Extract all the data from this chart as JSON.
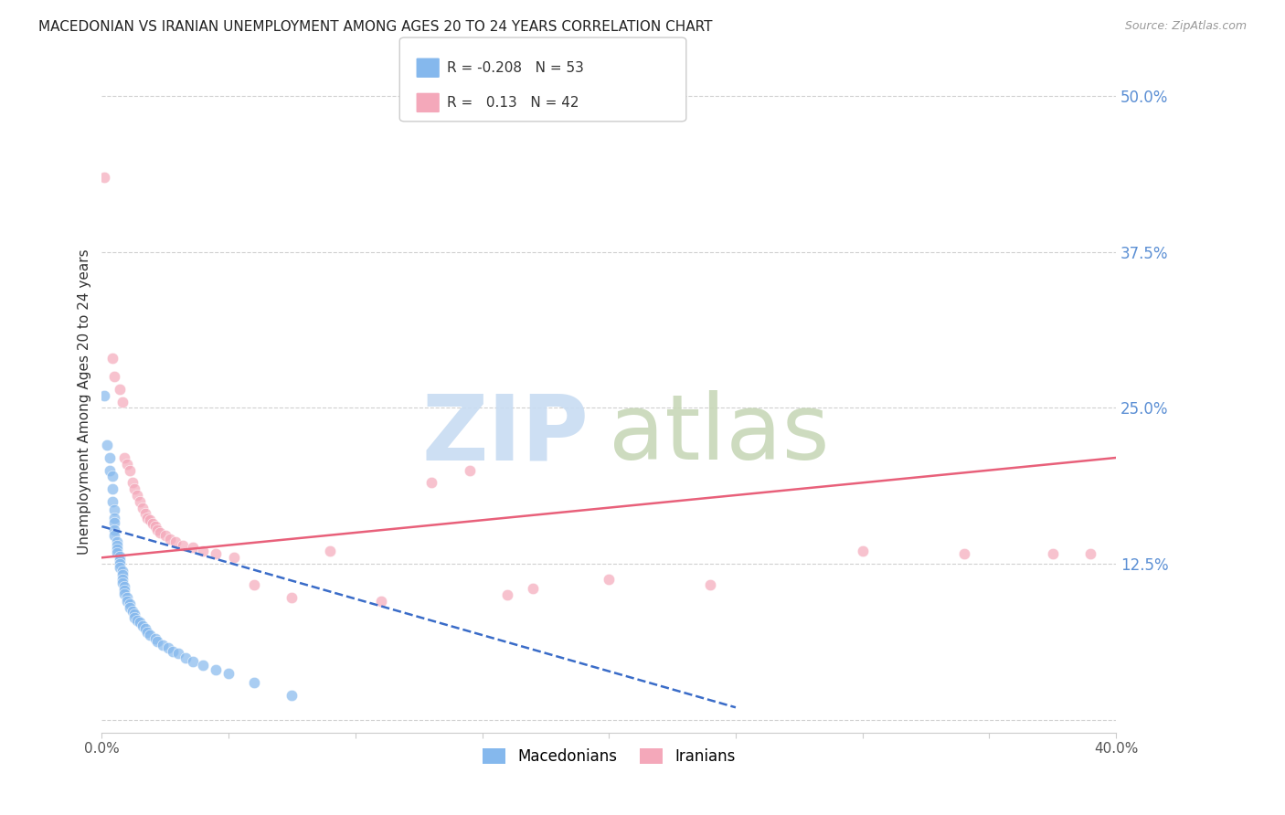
{
  "title": "MACEDONIAN VS IRANIAN UNEMPLOYMENT AMONG AGES 20 TO 24 YEARS CORRELATION CHART",
  "source": "Source: ZipAtlas.com",
  "ylabel": "Unemployment Among Ages 20 to 24 years",
  "xlim": [
    0.0,
    0.4
  ],
  "ylim": [
    -0.01,
    0.52
  ],
  "yticks_right": [
    0.0,
    0.125,
    0.25,
    0.375,
    0.5
  ],
  "ytick_labels_right": [
    "",
    "12.5%",
    "25.0%",
    "37.5%",
    "50.0%"
  ],
  "macedonian_color": "#85B8ED",
  "iranian_color": "#F4A8BA",
  "macedonian_line_color": "#3A6CC8",
  "iranian_line_color": "#E8607A",
  "r_macedonian": -0.208,
  "n_macedonian": 53,
  "r_iranian": 0.13,
  "n_iranian": 42,
  "macedonian_points": [
    [
      0.001,
      0.26
    ],
    [
      0.002,
      0.22
    ],
    [
      0.003,
      0.21
    ],
    [
      0.003,
      0.2
    ],
    [
      0.004,
      0.195
    ],
    [
      0.004,
      0.185
    ],
    [
      0.004,
      0.175
    ],
    [
      0.005,
      0.168
    ],
    [
      0.005,
      0.162
    ],
    [
      0.005,
      0.158
    ],
    [
      0.005,
      0.152
    ],
    [
      0.005,
      0.148
    ],
    [
      0.006,
      0.143
    ],
    [
      0.006,
      0.14
    ],
    [
      0.006,
      0.137
    ],
    [
      0.006,
      0.134
    ],
    [
      0.007,
      0.131
    ],
    [
      0.007,
      0.128
    ],
    [
      0.007,
      0.125
    ],
    [
      0.007,
      0.122
    ],
    [
      0.008,
      0.119
    ],
    [
      0.008,
      0.116
    ],
    [
      0.008,
      0.113
    ],
    [
      0.008,
      0.11
    ],
    [
      0.009,
      0.107
    ],
    [
      0.009,
      0.104
    ],
    [
      0.009,
      0.101
    ],
    [
      0.01,
      0.098
    ],
    [
      0.01,
      0.095
    ],
    [
      0.011,
      0.093
    ],
    [
      0.011,
      0.09
    ],
    [
      0.012,
      0.087
    ],
    [
      0.013,
      0.085
    ],
    [
      0.013,
      0.082
    ],
    [
      0.014,
      0.08
    ],
    [
      0.015,
      0.078
    ],
    [
      0.016,
      0.075
    ],
    [
      0.017,
      0.073
    ],
    [
      0.018,
      0.07
    ],
    [
      0.019,
      0.068
    ],
    [
      0.021,
      0.065
    ],
    [
      0.022,
      0.063
    ],
    [
      0.024,
      0.06
    ],
    [
      0.026,
      0.058
    ],
    [
      0.028,
      0.055
    ],
    [
      0.03,
      0.053
    ],
    [
      0.033,
      0.05
    ],
    [
      0.036,
      0.047
    ],
    [
      0.04,
      0.044
    ],
    [
      0.045,
      0.04
    ],
    [
      0.05,
      0.037
    ],
    [
      0.06,
      0.03
    ],
    [
      0.075,
      0.02
    ]
  ],
  "iranian_points": [
    [
      0.001,
      0.435
    ],
    [
      0.004,
      0.29
    ],
    [
      0.005,
      0.275
    ],
    [
      0.007,
      0.265
    ],
    [
      0.008,
      0.255
    ],
    [
      0.009,
      0.21
    ],
    [
      0.01,
      0.205
    ],
    [
      0.011,
      0.2
    ],
    [
      0.012,
      0.19
    ],
    [
      0.013,
      0.185
    ],
    [
      0.014,
      0.18
    ],
    [
      0.015,
      0.175
    ],
    [
      0.016,
      0.17
    ],
    [
      0.017,
      0.165
    ],
    [
      0.018,
      0.162
    ],
    [
      0.019,
      0.16
    ],
    [
      0.02,
      0.157
    ],
    [
      0.021,
      0.155
    ],
    [
      0.022,
      0.152
    ],
    [
      0.023,
      0.15
    ],
    [
      0.025,
      0.148
    ],
    [
      0.027,
      0.145
    ],
    [
      0.029,
      0.143
    ],
    [
      0.032,
      0.14
    ],
    [
      0.036,
      0.138
    ],
    [
      0.04,
      0.135
    ],
    [
      0.045,
      0.133
    ],
    [
      0.052,
      0.13
    ],
    [
      0.06,
      0.108
    ],
    [
      0.075,
      0.098
    ],
    [
      0.09,
      0.135
    ],
    [
      0.11,
      0.095
    ],
    [
      0.13,
      0.19
    ],
    [
      0.145,
      0.2
    ],
    [
      0.16,
      0.1
    ],
    [
      0.17,
      0.105
    ],
    [
      0.2,
      0.113
    ],
    [
      0.24,
      0.108
    ],
    [
      0.3,
      0.135
    ],
    [
      0.34,
      0.133
    ],
    [
      0.375,
      0.133
    ],
    [
      0.39,
      0.133
    ]
  ],
  "mac_line_x": [
    0.0,
    0.25
  ],
  "mac_line_y_start": 0.155,
  "mac_line_y_end": 0.01,
  "iran_line_x": [
    0.0,
    0.4
  ],
  "iran_line_y_start": 0.13,
  "iran_line_y_end": 0.21
}
